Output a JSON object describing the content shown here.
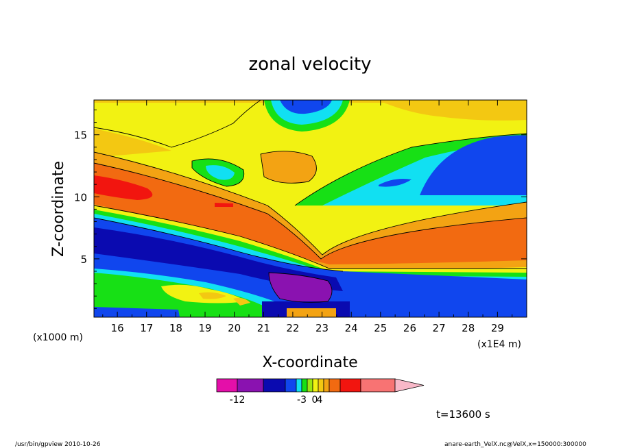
{
  "chart_data": {
    "type": "heatmap",
    "title": "zonal velocity",
    "xlabel": "X-coordinate",
    "ylabel": "Z-coordinate",
    "x_unit_left": "(x1000 m)",
    "x_unit_right": "(x1E4 m)",
    "xlim": [
      15.2,
      30.0
    ],
    "ylim": [
      0.3,
      17.8
    ],
    "x_ticks": [
      "16",
      "17",
      "18",
      "19",
      "20",
      "21",
      "22",
      "23",
      "24",
      "25",
      "26",
      "27",
      "28",
      "29"
    ],
    "y_ticks": [
      "5",
      "10",
      "15"
    ],
    "colorbar": {
      "levels": [
        -14,
        -12,
        -9,
        -6,
        -4.5,
        -3,
        -2,
        -1,
        0,
        1,
        2,
        4,
        6,
        10
      ],
      "tick_labels": [
        "-12",
        "-3",
        "0",
        "4"
      ],
      "colors": [
        "#e40fa9",
        "#8a12b0",
        "#0a0ab0",
        "#1046ee",
        "#11e0f2",
        "#17e015",
        "#9ce612",
        "#f2f212",
        "#f3c812",
        "#f3a313",
        "#f26a11",
        "#f2150f",
        "#f87373",
        "#f8b8c8"
      ]
    },
    "bands": [
      {
        "name": "upper-yellow",
        "color": "#f2f212"
      },
      {
        "name": "jet-orange",
        "color": "#f26a11"
      },
      {
        "name": "jet-core",
        "color": "#f2150f"
      },
      {
        "name": "lower-blue",
        "color": "#1046ee"
      },
      {
        "name": "lower-navy",
        "color": "#0a0ab0"
      },
      {
        "name": "surface-purple",
        "color": "#8a12b0"
      }
    ],
    "annotation_time": "t=13600 s"
  },
  "footer": {
    "left": "/usr/bin/gpview   2010-10-26",
    "right": "anare-earth_VelX.nc@VelX,x=150000:300000"
  }
}
